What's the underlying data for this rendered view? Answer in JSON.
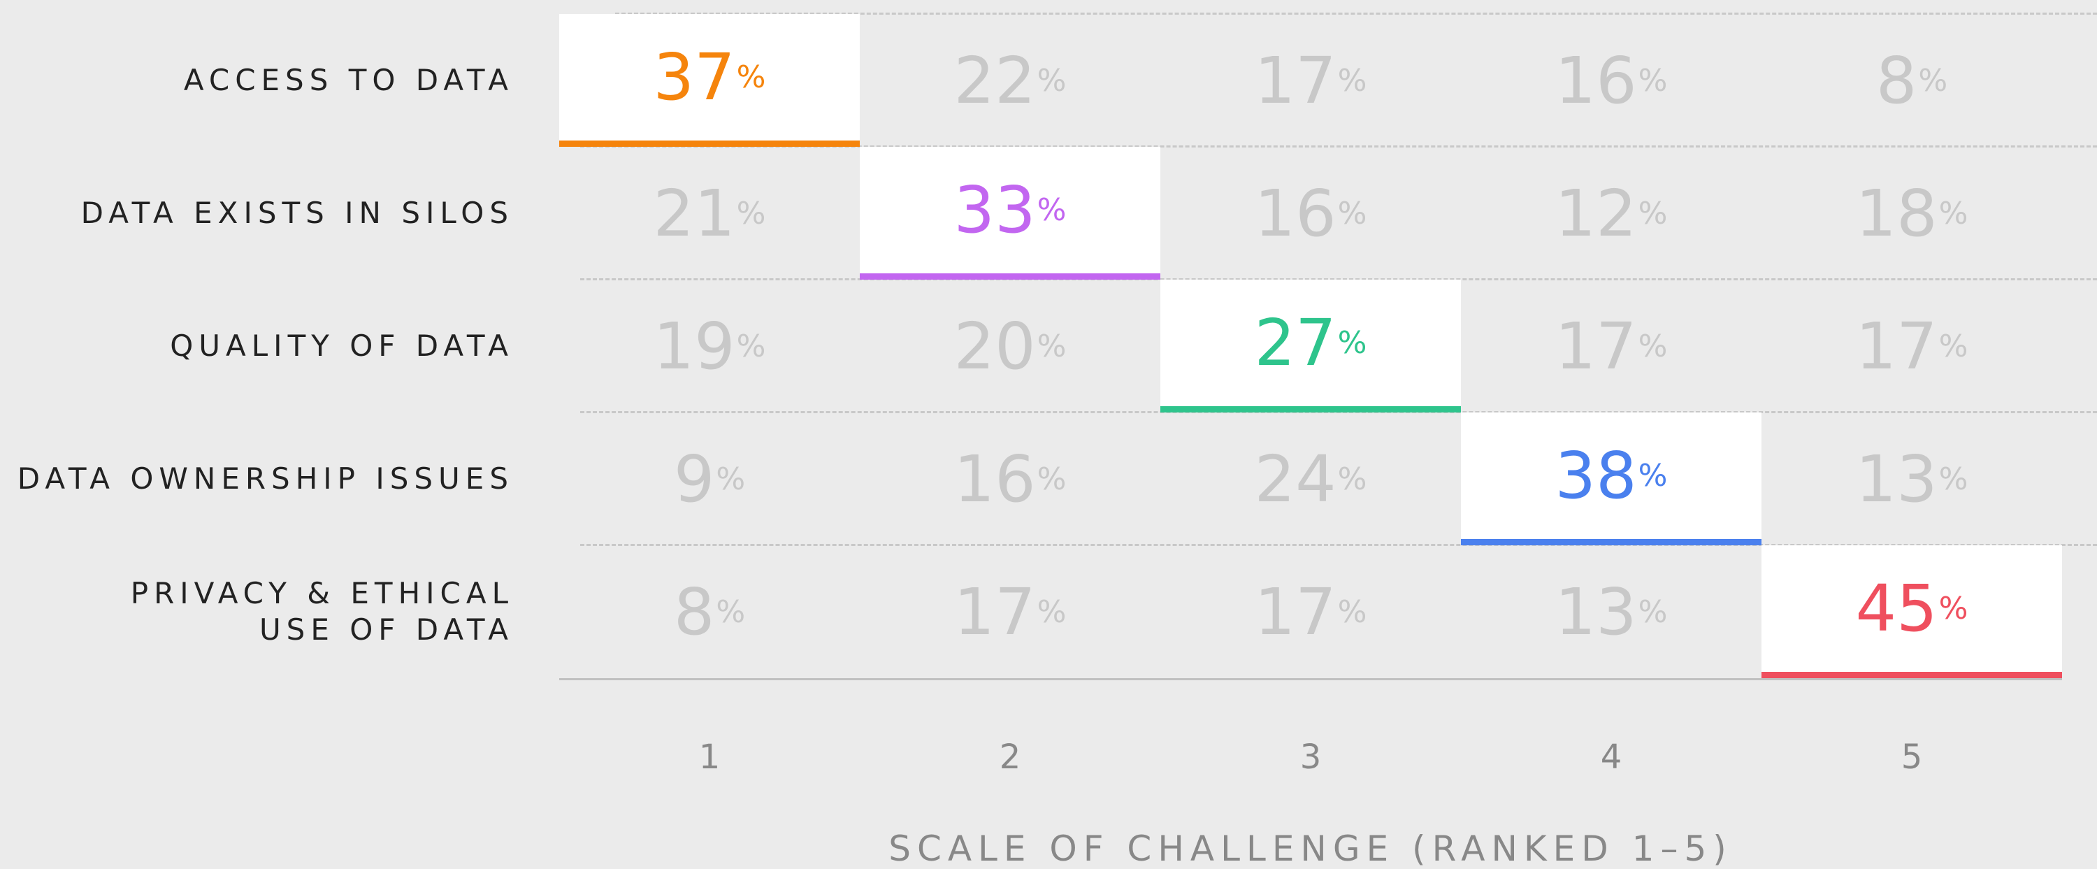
{
  "chart_data": {
    "type": "ranking-table",
    "categories": [
      "ACCESS TO DATA",
      "DATA EXISTS IN SILOS",
      "QUALITY OF DATA",
      "DATA OWNERSHIP ISSUES",
      "PRIVACY & ETHICAL\nUSE OF DATA"
    ],
    "columns": [
      1,
      2,
      3,
      4,
      5
    ],
    "values": [
      [
        37,
        22,
        17,
        16,
        8
      ],
      [
        21,
        33,
        16,
        12,
        18
      ],
      [
        19,
        20,
        27,
        17,
        17
      ],
      [
        9,
        16,
        24,
        38,
        13
      ],
      [
        8,
        17,
        17,
        13,
        45
      ]
    ],
    "unit": "%",
    "colors": [
      "#f5840c",
      "#c266f0",
      "#2ec48c",
      "#4a80ee",
      "#ef4f5e"
    ],
    "xlabel": "SCALE OF CHALLENGE (RANKED 1–5)"
  }
}
